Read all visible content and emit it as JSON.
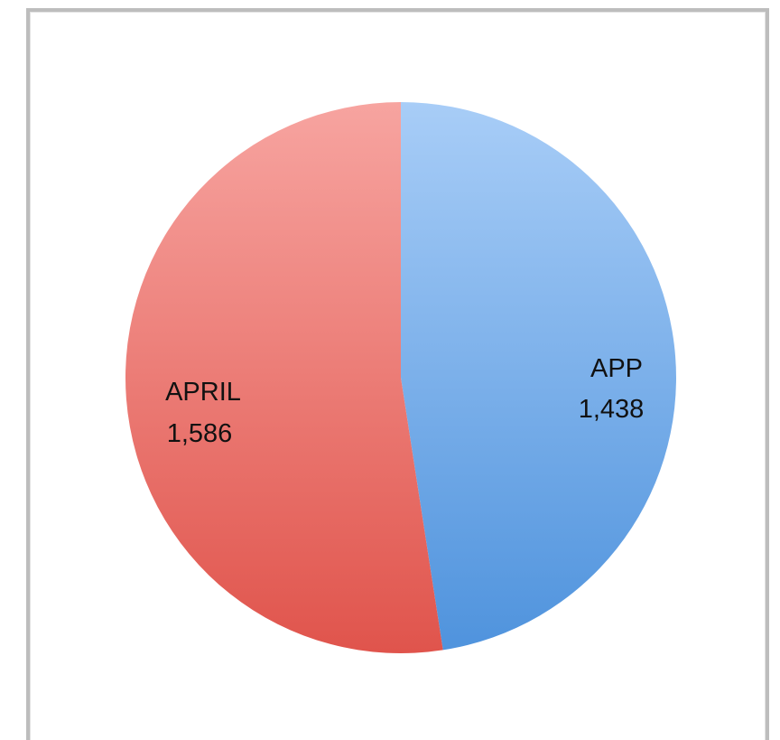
{
  "chart_data": {
    "type": "pie",
    "categories": [
      "APP",
      "APRIL"
    ],
    "values": [
      1438,
      1586
    ],
    "labels": [
      {
        "name": "APP",
        "value": "1,438"
      },
      {
        "name": "APRIL",
        "value": "1,586"
      }
    ],
    "colors": {
      "APP": [
        "#a8cdf7",
        "#4f93dd"
      ],
      "APRIL": [
        "#f7a4a0",
        "#e0544c"
      ]
    },
    "start": "12 o'clock",
    "direction": "clockwise",
    "legend": "none"
  }
}
